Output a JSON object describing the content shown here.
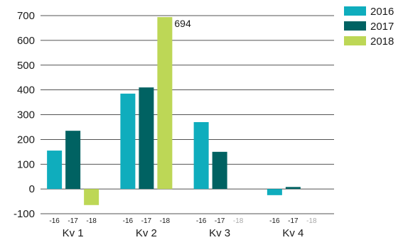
{
  "chart_data": {
    "type": "bar",
    "categories": [
      "Kv 1",
      "Kv 2",
      "Kv 3",
      "Kv 4"
    ],
    "series_sublabels": [
      "-16",
      "-17",
      "-18"
    ],
    "series": [
      {
        "name": "2016",
        "color": "#0fadbd",
        "values": [
          155,
          385,
          270,
          -25
        ]
      },
      {
        "name": "2017",
        "color": "#006262",
        "values": [
          235,
          410,
          150,
          8
        ]
      },
      {
        "name": "2018",
        "color": "#bdd756",
        "values": [
          -65,
          694,
          null,
          null
        ]
      }
    ],
    "yticks": [
      "700",
      "600",
      "500",
      "400",
      "300",
      "200",
      "100",
      "0",
      "-100"
    ],
    "ylim": [
      -100,
      700
    ],
    "grid": true,
    "legend_position": "right",
    "annotations": [
      {
        "category": "Kv 2",
        "series": "2018",
        "text": "694"
      }
    ]
  }
}
